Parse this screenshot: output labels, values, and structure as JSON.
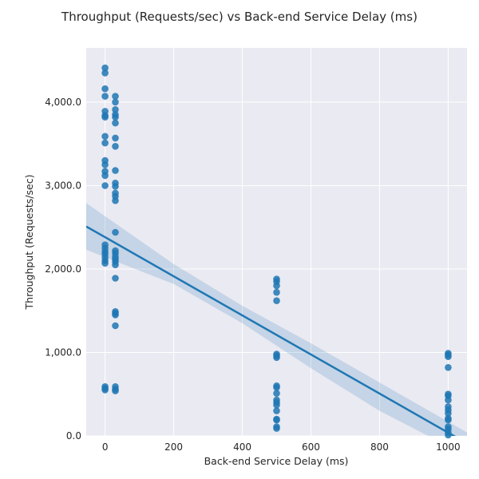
{
  "chart_data": {
    "type": "scatter",
    "title": "Throughput (Requests/sec) vs Back-end Service Delay (ms)",
    "xlabel": "Back-end Service Delay (ms)",
    "ylabel": "Throughput (Requests/sec)",
    "xlim": [
      -55,
      1055
    ],
    "ylim": [
      0,
      4650
    ],
    "x_ticks": [
      {
        "value": 0,
        "label": "0"
      },
      {
        "value": 200,
        "label": "200"
      },
      {
        "value": 400,
        "label": "400"
      },
      {
        "value": 600,
        "label": "600"
      },
      {
        "value": 800,
        "label": "800"
      },
      {
        "value": 1000,
        "label": "1000"
      }
    ],
    "y_ticks": [
      {
        "value": 0,
        "label": "0.0"
      },
      {
        "value": 1000,
        "label": "1,000.0"
      },
      {
        "value": 2000,
        "label": "2,000.0"
      },
      {
        "value": 3000,
        "label": "3,000.0"
      },
      {
        "value": 4000,
        "label": "4,000.0"
      }
    ],
    "grid": true,
    "background": "#eaeaf2",
    "point_color": "#1f77b4",
    "line_color": "#1f77b4",
    "band_color": "#1f77b4",
    "points": [
      {
        "x": 0,
        "y": 4410
      },
      {
        "x": 0,
        "y": 4350
      },
      {
        "x": 0,
        "y": 4160
      },
      {
        "x": 0,
        "y": 4070
      },
      {
        "x": 0,
        "y": 3890
      },
      {
        "x": 0,
        "y": 3840
      },
      {
        "x": 0,
        "y": 3820
      },
      {
        "x": 0,
        "y": 3590
      },
      {
        "x": 0,
        "y": 3510
      },
      {
        "x": 0,
        "y": 3300
      },
      {
        "x": 0,
        "y": 3250
      },
      {
        "x": 0,
        "y": 3170
      },
      {
        "x": 0,
        "y": 3120
      },
      {
        "x": 0,
        "y": 3000
      },
      {
        "x": 0,
        "y": 2290
      },
      {
        "x": 0,
        "y": 2250
      },
      {
        "x": 0,
        "y": 2210
      },
      {
        "x": 0,
        "y": 2180
      },
      {
        "x": 0,
        "y": 2140
      },
      {
        "x": 0,
        "y": 2100
      },
      {
        "x": 0,
        "y": 2070
      },
      {
        "x": 0,
        "y": 590
      },
      {
        "x": 0,
        "y": 570
      },
      {
        "x": 0,
        "y": 550
      },
      {
        "x": 30,
        "y": 4070
      },
      {
        "x": 30,
        "y": 4000
      },
      {
        "x": 30,
        "y": 3910
      },
      {
        "x": 30,
        "y": 3850
      },
      {
        "x": 30,
        "y": 3820
      },
      {
        "x": 30,
        "y": 3750
      },
      {
        "x": 30,
        "y": 3570
      },
      {
        "x": 30,
        "y": 3470
      },
      {
        "x": 30,
        "y": 3180
      },
      {
        "x": 30,
        "y": 3030
      },
      {
        "x": 30,
        "y": 2990
      },
      {
        "x": 30,
        "y": 2910
      },
      {
        "x": 30,
        "y": 2870
      },
      {
        "x": 30,
        "y": 2820
      },
      {
        "x": 30,
        "y": 2440
      },
      {
        "x": 30,
        "y": 2220
      },
      {
        "x": 30,
        "y": 2190
      },
      {
        "x": 30,
        "y": 2150
      },
      {
        "x": 30,
        "y": 2120
      },
      {
        "x": 30,
        "y": 2090
      },
      {
        "x": 30,
        "y": 2050
      },
      {
        "x": 30,
        "y": 1890
      },
      {
        "x": 30,
        "y": 1490
      },
      {
        "x": 30,
        "y": 1470
      },
      {
        "x": 30,
        "y": 1450
      },
      {
        "x": 30,
        "y": 1320
      },
      {
        "x": 30,
        "y": 590
      },
      {
        "x": 30,
        "y": 560
      },
      {
        "x": 30,
        "y": 540
      },
      {
        "x": 500,
        "y": 1880
      },
      {
        "x": 500,
        "y": 1850
      },
      {
        "x": 500,
        "y": 1800
      },
      {
        "x": 500,
        "y": 1720
      },
      {
        "x": 500,
        "y": 1620
      },
      {
        "x": 500,
        "y": 980
      },
      {
        "x": 500,
        "y": 960
      },
      {
        "x": 500,
        "y": 940
      },
      {
        "x": 500,
        "y": 600
      },
      {
        "x": 500,
        "y": 580
      },
      {
        "x": 500,
        "y": 510
      },
      {
        "x": 500,
        "y": 430
      },
      {
        "x": 500,
        "y": 400
      },
      {
        "x": 500,
        "y": 370
      },
      {
        "x": 500,
        "y": 300
      },
      {
        "x": 500,
        "y": 200
      },
      {
        "x": 500,
        "y": 190
      },
      {
        "x": 500,
        "y": 110
      },
      {
        "x": 500,
        "y": 90
      },
      {
        "x": 1000,
        "y": 990
      },
      {
        "x": 1000,
        "y": 970
      },
      {
        "x": 1000,
        "y": 950
      },
      {
        "x": 1000,
        "y": 820
      },
      {
        "x": 1000,
        "y": 500
      },
      {
        "x": 1000,
        "y": 480
      },
      {
        "x": 1000,
        "y": 430
      },
      {
        "x": 1000,
        "y": 350
      },
      {
        "x": 1000,
        "y": 310
      },
      {
        "x": 1000,
        "y": 270
      },
      {
        "x": 1000,
        "y": 210
      },
      {
        "x": 1000,
        "y": 190
      },
      {
        "x": 1000,
        "y": 110
      },
      {
        "x": 1000,
        "y": 80
      },
      {
        "x": 1000,
        "y": 40
      },
      {
        "x": 1000,
        "y": 10
      }
    ],
    "regression": {
      "x": [
        -55,
        1055
      ],
      "y": [
        2510,
        -90
      ]
    },
    "confidence_band": {
      "x": [
        -55,
        200,
        400,
        600,
        800,
        1055
      ],
      "upper": [
        2790,
        2060,
        1560,
        1110,
        640,
        40
      ],
      "lower": [
        2230,
        1820,
        1350,
        810,
        300,
        -240
      ]
    }
  }
}
